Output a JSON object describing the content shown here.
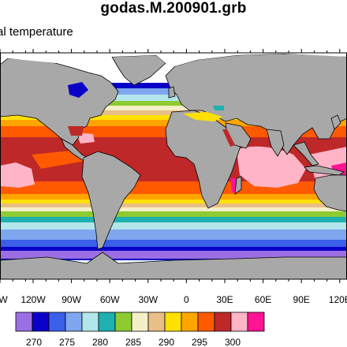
{
  "title": "godas.M.200901.grb",
  "subtitle": "al temperature",
  "colors": {
    "land": "#a8a8a8",
    "coast": "#000000",
    "c265": "#9b6fe3",
    "c270": "#0a00c8",
    "c275": "#3a5fe8",
    "c280": "#7fa7ef",
    "c282": "#b2e6ea",
    "c284": "#1fb0b0",
    "c285": "#8ecb32",
    "c288": "#f5efc8",
    "c290": "#e8bf86",
    "c292": "#ffe000",
    "c294": "#ffa500",
    "c296": "#ff5a00",
    "c298": "#be2828",
    "c300": "#ffb4c8",
    "c302": "#ff1493"
  },
  "lon_ticks": [
    "W",
    "120W",
    "90W",
    "60W",
    "30W",
    "0",
    "30E",
    "60E",
    "90E",
    "120E"
  ],
  "colorbar": {
    "labels": [
      "270",
      "275",
      "280",
      "285",
      "290",
      "295",
      "300"
    ],
    "bins": [
      "c265",
      "c270",
      "c275",
      "c280",
      "c282",
      "c284",
      "c285",
      "c288",
      "c290",
      "c292",
      "c294",
      "c296",
      "c298",
      "c300",
      "c302"
    ]
  }
}
